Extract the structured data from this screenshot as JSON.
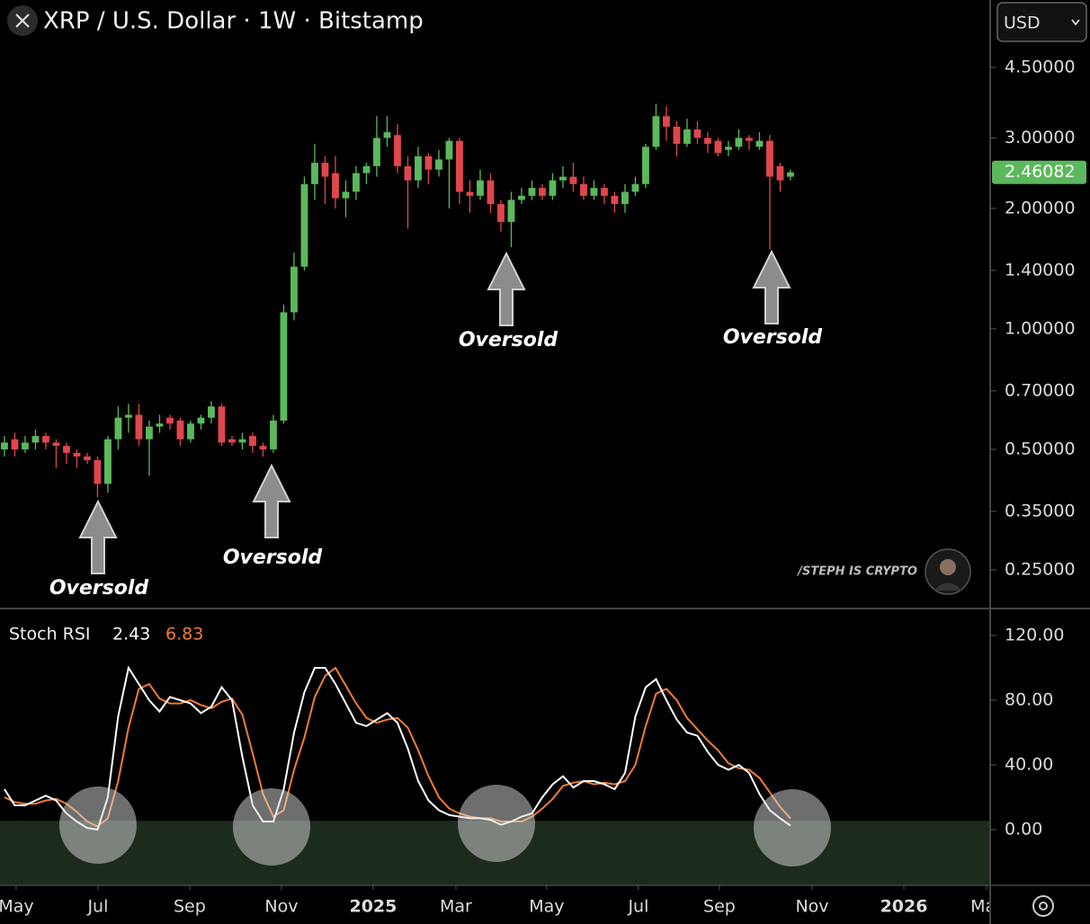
{
  "header": {
    "title": "XRP / U.S. Dollar · 1W · Bitstamp",
    "currency": "USD"
  },
  "watermark": "/STEPH IS CRYPTO",
  "chart_data": [
    {
      "type": "candlestick",
      "log_scale": true,
      "up_color": "#5cb85c",
      "down_color": "#e0474c",
      "xlim": [
        -0.43,
        95.22
      ],
      "ylim": [
        0.2012,
        6.632
      ],
      "yticks": [
        {
          "value": 4.5,
          "label": "4.50000"
        },
        {
          "value": 3,
          "label": "3.00000"
        },
        {
          "value": 2,
          "label": "2.00000"
        },
        {
          "value": 1.4,
          "label": "1.40000"
        },
        {
          "value": 1,
          "label": "1.00000"
        },
        {
          "value": 0.7,
          "label": "0.70000"
        },
        {
          "value": 0.5,
          "label": "0.50000"
        },
        {
          "value": 0.35,
          "label": "0.35000"
        },
        {
          "value": 0.25,
          "label": "0.25000"
        }
      ],
      "open": [
        0.5,
        0.53,
        0.5,
        0.52,
        0.54,
        0.52,
        0.51,
        0.49,
        0.48,
        0.47,
        0.41,
        0.53,
        0.6,
        0.61,
        0.53,
        0.57,
        0.6,
        0.59,
        0.53,
        0.58,
        0.6,
        0.64,
        0.53,
        0.52,
        0.54,
        0.51,
        0.5,
        0.59,
        1.1,
        1.43,
        2.3,
        2.6,
        2.45,
        2.12,
        2.2,
        2.45,
        2.55,
        3.0,
        3.05,
        2.55,
        2.35,
        2.7,
        2.5,
        2.65,
        2.95,
        2.2,
        2.15,
        2.35,
        2.05,
        1.85,
        2.1,
        2.15,
        2.25,
        2.15,
        2.35,
        2.4,
        2.3,
        2.15,
        2.25,
        2.15,
        2.05,
        2.2,
        2.3,
        2.85,
        3.4,
        3.2,
        2.9,
        3.15,
        3.0,
        2.95,
        2.8,
        2.85,
        3.0,
        2.85,
        2.95,
        2.55,
        2.4
      ],
      "high": [
        0.54,
        0.55,
        0.54,
        0.56,
        0.55,
        0.53,
        0.52,
        0.5,
        0.49,
        0.48,
        0.54,
        0.64,
        0.65,
        0.65,
        0.59,
        0.61,
        0.61,
        0.6,
        0.59,
        0.61,
        0.66,
        0.65,
        0.54,
        0.55,
        0.55,
        0.52,
        0.61,
        1.15,
        1.55,
        2.4,
        2.9,
        2.7,
        2.7,
        2.35,
        2.55,
        2.6,
        3.4,
        3.4,
        3.25,
        2.7,
        2.85,
        2.75,
        2.8,
        3.0,
        3.0,
        2.35,
        2.5,
        2.45,
        2.1,
        2.2,
        2.25,
        2.35,
        2.3,
        2.45,
        2.55,
        2.6,
        2.4,
        2.35,
        2.3,
        2.2,
        2.3,
        2.4,
        2.9,
        3.65,
        3.6,
        3.3,
        3.35,
        3.3,
        3.1,
        3.0,
        2.95,
        3.15,
        3.05,
        3.1,
        3.05,
        2.6,
        2.5
      ],
      "low": [
        0.48,
        0.48,
        0.49,
        0.5,
        0.5,
        0.45,
        0.46,
        0.45,
        0.46,
        0.38,
        0.39,
        0.5,
        0.55,
        0.51,
        0.43,
        0.55,
        0.56,
        0.51,
        0.52,
        0.56,
        0.58,
        0.51,
        0.51,
        0.5,
        0.49,
        0.48,
        0.49,
        0.58,
        1.05,
        1.4,
        2.1,
        2.05,
        2.0,
        1.9,
        2.1,
        2.3,
        2.4,
        2.85,
        2.45,
        1.78,
        2.25,
        2.3,
        2.4,
        2.0,
        2.05,
        1.95,
        2.1,
        1.95,
        1.75,
        1.6,
        2.05,
        2.1,
        2.1,
        2.1,
        2.25,
        2.2,
        2.1,
        2.1,
        2.05,
        1.95,
        1.95,
        2.15,
        2.25,
        2.8,
        2.95,
        2.7,
        2.85,
        2.9,
        2.75,
        2.7,
        2.7,
        2.8,
        2.8,
        2.8,
        1.58,
        2.2,
        2.35
      ],
      "close": [
        0.52,
        0.5,
        0.52,
        0.54,
        0.52,
        0.51,
        0.49,
        0.48,
        0.47,
        0.41,
        0.53,
        0.6,
        0.61,
        0.53,
        0.57,
        0.58,
        0.58,
        0.53,
        0.58,
        0.6,
        0.64,
        0.52,
        0.52,
        0.53,
        0.51,
        0.5,
        0.59,
        1.1,
        1.43,
        2.3,
        2.6,
        2.4,
        2.12,
        2.2,
        2.45,
        2.55,
        3.0,
        3.1,
        2.55,
        2.35,
        2.7,
        2.5,
        2.65,
        2.95,
        2.2,
        2.15,
        2.35,
        2.05,
        1.85,
        2.1,
        2.15,
        2.25,
        2.15,
        2.35,
        2.4,
        2.3,
        2.15,
        2.25,
        2.15,
        2.05,
        2.2,
        2.3,
        2.85,
        3.4,
        3.2,
        2.9,
        3.15,
        3.0,
        2.9,
        2.75,
        2.85,
        3.0,
        2.95,
        2.95,
        2.4,
        2.35,
        2.46082
      ],
      "annotations": [
        "Oversold",
        "Oversold",
        "Oversold",
        "Oversold"
      ]
    },
    {
      "type": "line",
      "title": "Stoch RSI",
      "xlim": [
        -0.43,
        95.22
      ],
      "ylim": [
        -34.44,
        136.11
      ],
      "oversold_level": 5.5,
      "zone_color": "#1d2b1c",
      "yticks": [
        {
          "value": 120,
          "label": "120.00"
        },
        {
          "value": 80,
          "label": "80.00"
        },
        {
          "value": 40,
          "label": "40.00"
        },
        {
          "value": 0,
          "label": "0.00"
        }
      ],
      "xticks": [
        {
          "value": 1.13,
          "label": "May"
        },
        {
          "value": 9.04,
          "label": "Jul"
        },
        {
          "value": 17.91,
          "label": "Sep"
        },
        {
          "value": 26.78,
          "label": "Nov"
        },
        {
          "value": 35.65,
          "label": "2025"
        },
        {
          "value": 43.65,
          "label": "Mar"
        },
        {
          "value": 52.43,
          "label": "May"
        },
        {
          "value": 61.3,
          "label": "Jul"
        },
        {
          "value": 69.13,
          "label": "Sep"
        },
        {
          "value": 78.09,
          "label": "Nov"
        },
        {
          "value": 86.96,
          "label": "2026"
        },
        {
          "value": 94.96,
          "label": "Mar"
        }
      ],
      "series": [
        {
          "color": "#ffffff",
          "values": [
            25,
            15,
            15,
            18,
            21,
            18,
            10,
            5,
            1,
            0,
            20,
            70,
            100,
            90,
            80,
            73,
            82,
            80,
            78,
            72,
            76,
            88,
            80,
            45,
            15,
            5,
            5,
            25,
            60,
            85,
            100,
            100,
            90,
            78,
            66,
            64,
            68,
            72,
            66,
            50,
            30,
            18,
            12,
            9,
            8,
            7,
            7,
            6,
            3,
            5,
            8,
            10,
            20,
            28,
            33,
            26,
            30,
            30,
            28,
            25,
            35,
            70,
            88,
            93,
            80,
            68,
            60,
            58,
            48,
            40,
            37,
            40,
            35,
            22,
            12,
            7,
            2.43
          ]
        },
        {
          "color": "#f07d32",
          "values": [
            20,
            17,
            16,
            16,
            18,
            19,
            16,
            11,
            5,
            2,
            7,
            30,
            63,
            87,
            90,
            81,
            78,
            78,
            80,
            77,
            75,
            79,
            81,
            71,
            47,
            22,
            8,
            12,
            37,
            57,
            82,
            95,
            100,
            89,
            78,
            69,
            66,
            68,
            69,
            63,
            49,
            33,
            20,
            13,
            10,
            8,
            7,
            7,
            5,
            5,
            5,
            8,
            13,
            19,
            27,
            29,
            30,
            28,
            29,
            28,
            30,
            40,
            64,
            84,
            87,
            80,
            69,
            62,
            55,
            49,
            41,
            38,
            37,
            32,
            23,
            14,
            6.83
          ]
        }
      ]
    }
  ]
}
